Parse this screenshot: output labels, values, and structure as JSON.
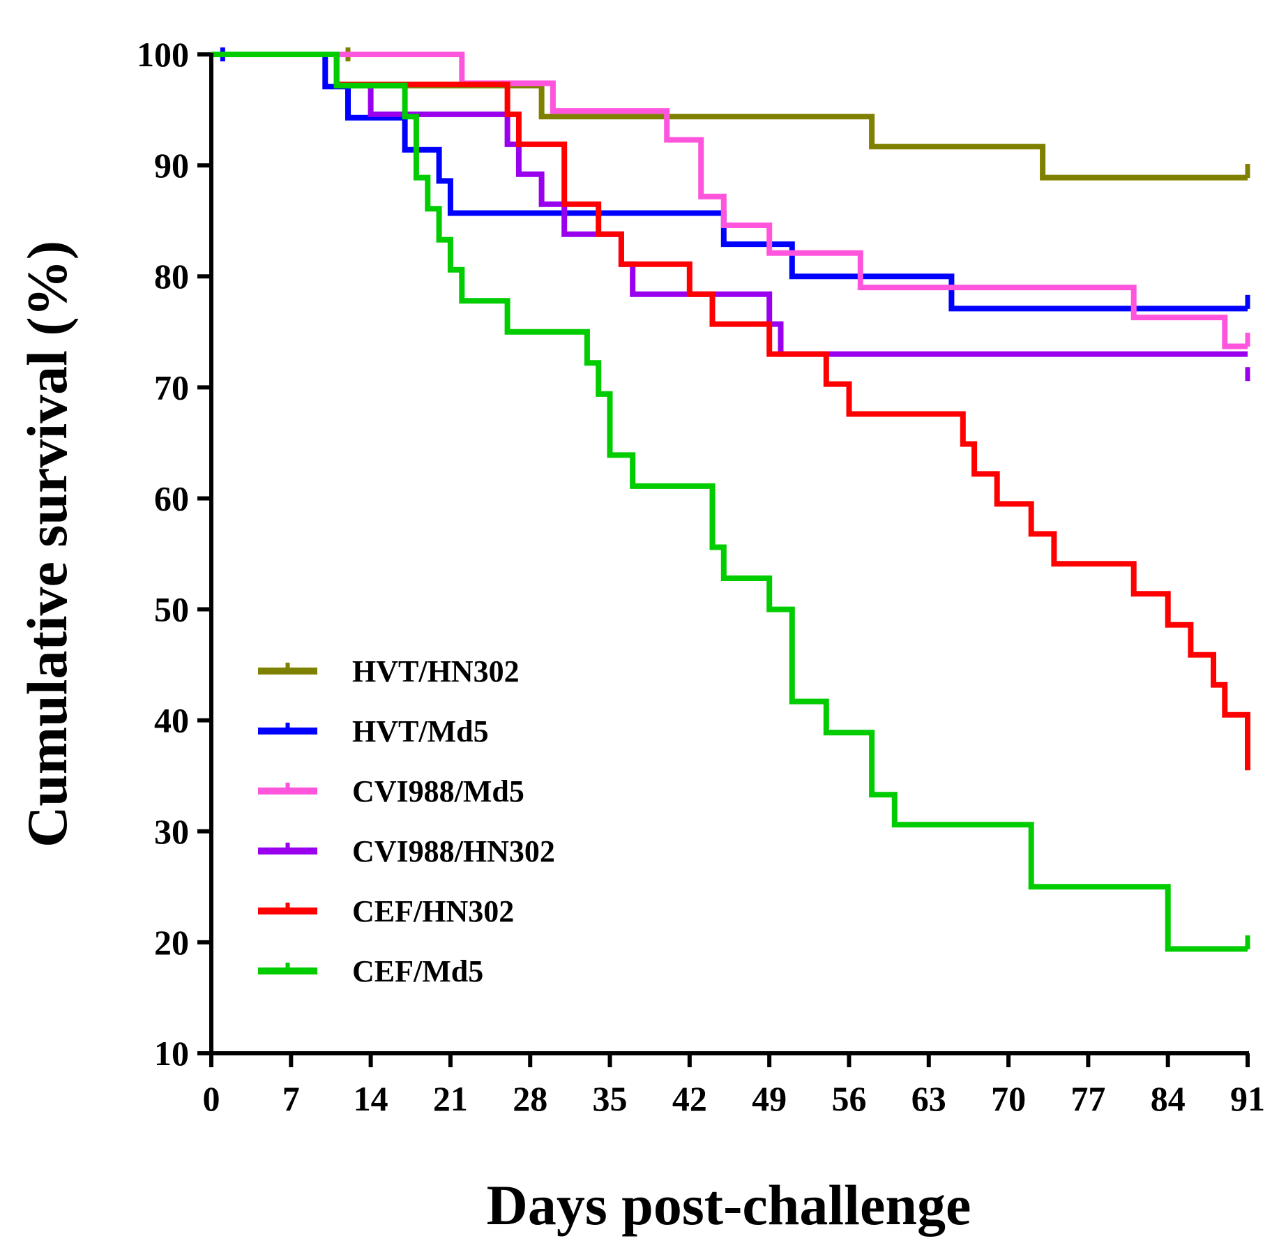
{
  "chart_data": {
    "type": "line",
    "title": "",
    "xlabel": "Days post-challenge",
    "ylabel": "Cumulative survival (%)",
    "xlim": [
      0,
      91
    ],
    "ylim": [
      10,
      100
    ],
    "xticks": [
      0,
      7,
      14,
      21,
      28,
      35,
      42,
      49,
      56,
      63,
      70,
      77,
      84,
      91
    ],
    "yticks": [
      10,
      20,
      30,
      40,
      50,
      60,
      70,
      80,
      90,
      100
    ],
    "grid": false,
    "legend_position": "bottom-left",
    "series": [
      {
        "name": "HVT/HN302",
        "color": "#808000",
        "points": [
          [
            0,
            100
          ],
          [
            11,
            100
          ],
          [
            11,
            97.2
          ],
          [
            29,
            97.2
          ],
          [
            29,
            94.4
          ],
          [
            58,
            94.4
          ],
          [
            58,
            91.7
          ],
          [
            73,
            91.7
          ],
          [
            73,
            88.9
          ],
          [
            91,
            88.9
          ]
        ],
        "censored": [
          [
            12,
            100
          ],
          [
            91,
            89.5
          ]
        ]
      },
      {
        "name": "HVT/Md5",
        "color": "#0000ff",
        "points": [
          [
            0,
            100
          ],
          [
            10,
            100
          ],
          [
            10,
            97.1
          ],
          [
            12,
            97.1
          ],
          [
            12,
            94.3
          ],
          [
            17,
            94.3
          ],
          [
            17,
            91.4
          ],
          [
            20,
            91.4
          ],
          [
            20,
            88.6
          ],
          [
            21,
            88.6
          ],
          [
            21,
            85.7
          ],
          [
            45,
            85.7
          ],
          [
            45,
            82.9
          ],
          [
            51,
            82.9
          ],
          [
            51,
            80.0
          ],
          [
            65,
            80.0
          ],
          [
            65,
            77.1
          ],
          [
            91,
            77.1
          ]
        ],
        "censored": [
          [
            1,
            100
          ],
          [
            91,
            77.7
          ]
        ]
      },
      {
        "name": "CVI988/Md5",
        "color": "#ff55dd",
        "points": [
          [
            0,
            100
          ],
          [
            22,
            100
          ],
          [
            22,
            97.4
          ],
          [
            30,
            97.4
          ],
          [
            30,
            94.9
          ],
          [
            40,
            94.9
          ],
          [
            40,
            92.3
          ],
          [
            43,
            92.3
          ],
          [
            43,
            87.2
          ],
          [
            45,
            87.2
          ],
          [
            45,
            84.6
          ],
          [
            49,
            84.6
          ],
          [
            49,
            82.1
          ],
          [
            57,
            82.1
          ],
          [
            57,
            79.0
          ],
          [
            81,
            79.0
          ],
          [
            81,
            76.3
          ],
          [
            89,
            76.3
          ],
          [
            89,
            73.7
          ],
          [
            91,
            73.7
          ]
        ],
        "censored": [
          [
            91,
            74.3
          ]
        ]
      },
      {
        "name": "CVI988/HN302",
        "color": "#9900ee",
        "points": [
          [
            0,
            100
          ],
          [
            11,
            100
          ],
          [
            11,
            97.3
          ],
          [
            14,
            97.3
          ],
          [
            14,
            94.6
          ],
          [
            26,
            94.6
          ],
          [
            26,
            91.9
          ],
          [
            27,
            91.9
          ],
          [
            27,
            89.2
          ],
          [
            29,
            89.2
          ],
          [
            29,
            86.5
          ],
          [
            31,
            86.5
          ],
          [
            31,
            83.8
          ],
          [
            36,
            83.8
          ],
          [
            36,
            81.1
          ],
          [
            37,
            81.1
          ],
          [
            37,
            78.4
          ],
          [
            49,
            78.4
          ],
          [
            49,
            75.7
          ],
          [
            50,
            75.7
          ],
          [
            50,
            73.0
          ],
          [
            91,
            73.0
          ]
        ],
        "censored": [
          [
            91,
            71.2
          ]
        ]
      },
      {
        "name": "CEF/HN302",
        "color": "#ff0000",
        "points": [
          [
            0,
            100
          ],
          [
            11,
            100
          ],
          [
            11,
            97.3
          ],
          [
            26,
            97.3
          ],
          [
            26,
            94.6
          ],
          [
            27,
            94.6
          ],
          [
            27,
            91.9
          ],
          [
            31,
            91.9
          ],
          [
            31,
            86.5
          ],
          [
            34,
            86.5
          ],
          [
            34,
            83.8
          ],
          [
            36,
            83.8
          ],
          [
            36,
            81.1
          ],
          [
            42,
            81.1
          ],
          [
            42,
            78.4
          ],
          [
            44,
            78.4
          ],
          [
            44,
            75.7
          ],
          [
            49,
            75.7
          ],
          [
            49,
            73.0
          ],
          [
            54,
            73.0
          ],
          [
            54,
            70.3
          ],
          [
            56,
            70.3
          ],
          [
            56,
            67.6
          ],
          [
            66,
            67.6
          ],
          [
            66,
            64.9
          ],
          [
            67,
            64.9
          ],
          [
            67,
            62.2
          ],
          [
            69,
            62.2
          ],
          [
            69,
            59.5
          ],
          [
            72,
            59.5
          ],
          [
            72,
            56.8
          ],
          [
            74,
            56.8
          ],
          [
            74,
            54.1
          ],
          [
            81,
            54.1
          ],
          [
            81,
            51.4
          ],
          [
            84,
            51.4
          ],
          [
            84,
            48.6
          ],
          [
            86,
            48.6
          ],
          [
            86,
            45.9
          ],
          [
            88,
            45.9
          ],
          [
            88,
            43.2
          ],
          [
            89,
            43.2
          ],
          [
            89,
            40.5
          ],
          [
            91,
            40.5
          ],
          [
            91,
            35.5
          ]
        ],
        "censored": []
      },
      {
        "name": "CEF/Md5",
        "color": "#00cc00",
        "points": [
          [
            0,
            100
          ],
          [
            11,
            100
          ],
          [
            11,
            97.2
          ],
          [
            17,
            97.2
          ],
          [
            17,
            94.4
          ],
          [
            18,
            94.4
          ],
          [
            18,
            88.9
          ],
          [
            19,
            88.9
          ],
          [
            19,
            86.1
          ],
          [
            20,
            86.1
          ],
          [
            20,
            83.3
          ],
          [
            21,
            83.3
          ],
          [
            21,
            80.6
          ],
          [
            22,
            80.6
          ],
          [
            22,
            77.8
          ],
          [
            26,
            77.8
          ],
          [
            26,
            75.0
          ],
          [
            33,
            75.0
          ],
          [
            33,
            72.2
          ],
          [
            34,
            72.2
          ],
          [
            34,
            69.4
          ],
          [
            35,
            69.4
          ],
          [
            35,
            63.9
          ],
          [
            37,
            63.9
          ],
          [
            37,
            61.1
          ],
          [
            44,
            61.1
          ],
          [
            44,
            55.6
          ],
          [
            45,
            55.6
          ],
          [
            45,
            52.8
          ],
          [
            49,
            52.8
          ],
          [
            49,
            50.0
          ],
          [
            51,
            50.0
          ],
          [
            51,
            41.7
          ],
          [
            54,
            41.7
          ],
          [
            54,
            38.9
          ],
          [
            58,
            38.9
          ],
          [
            58,
            33.3
          ],
          [
            60,
            33.3
          ],
          [
            60,
            30.6
          ],
          [
            72,
            30.6
          ],
          [
            72,
            25.0
          ],
          [
            84,
            25.0
          ],
          [
            84,
            19.4
          ],
          [
            91,
            19.4
          ]
        ],
        "censored": [
          [
            91,
            20.0
          ]
        ]
      }
    ]
  }
}
